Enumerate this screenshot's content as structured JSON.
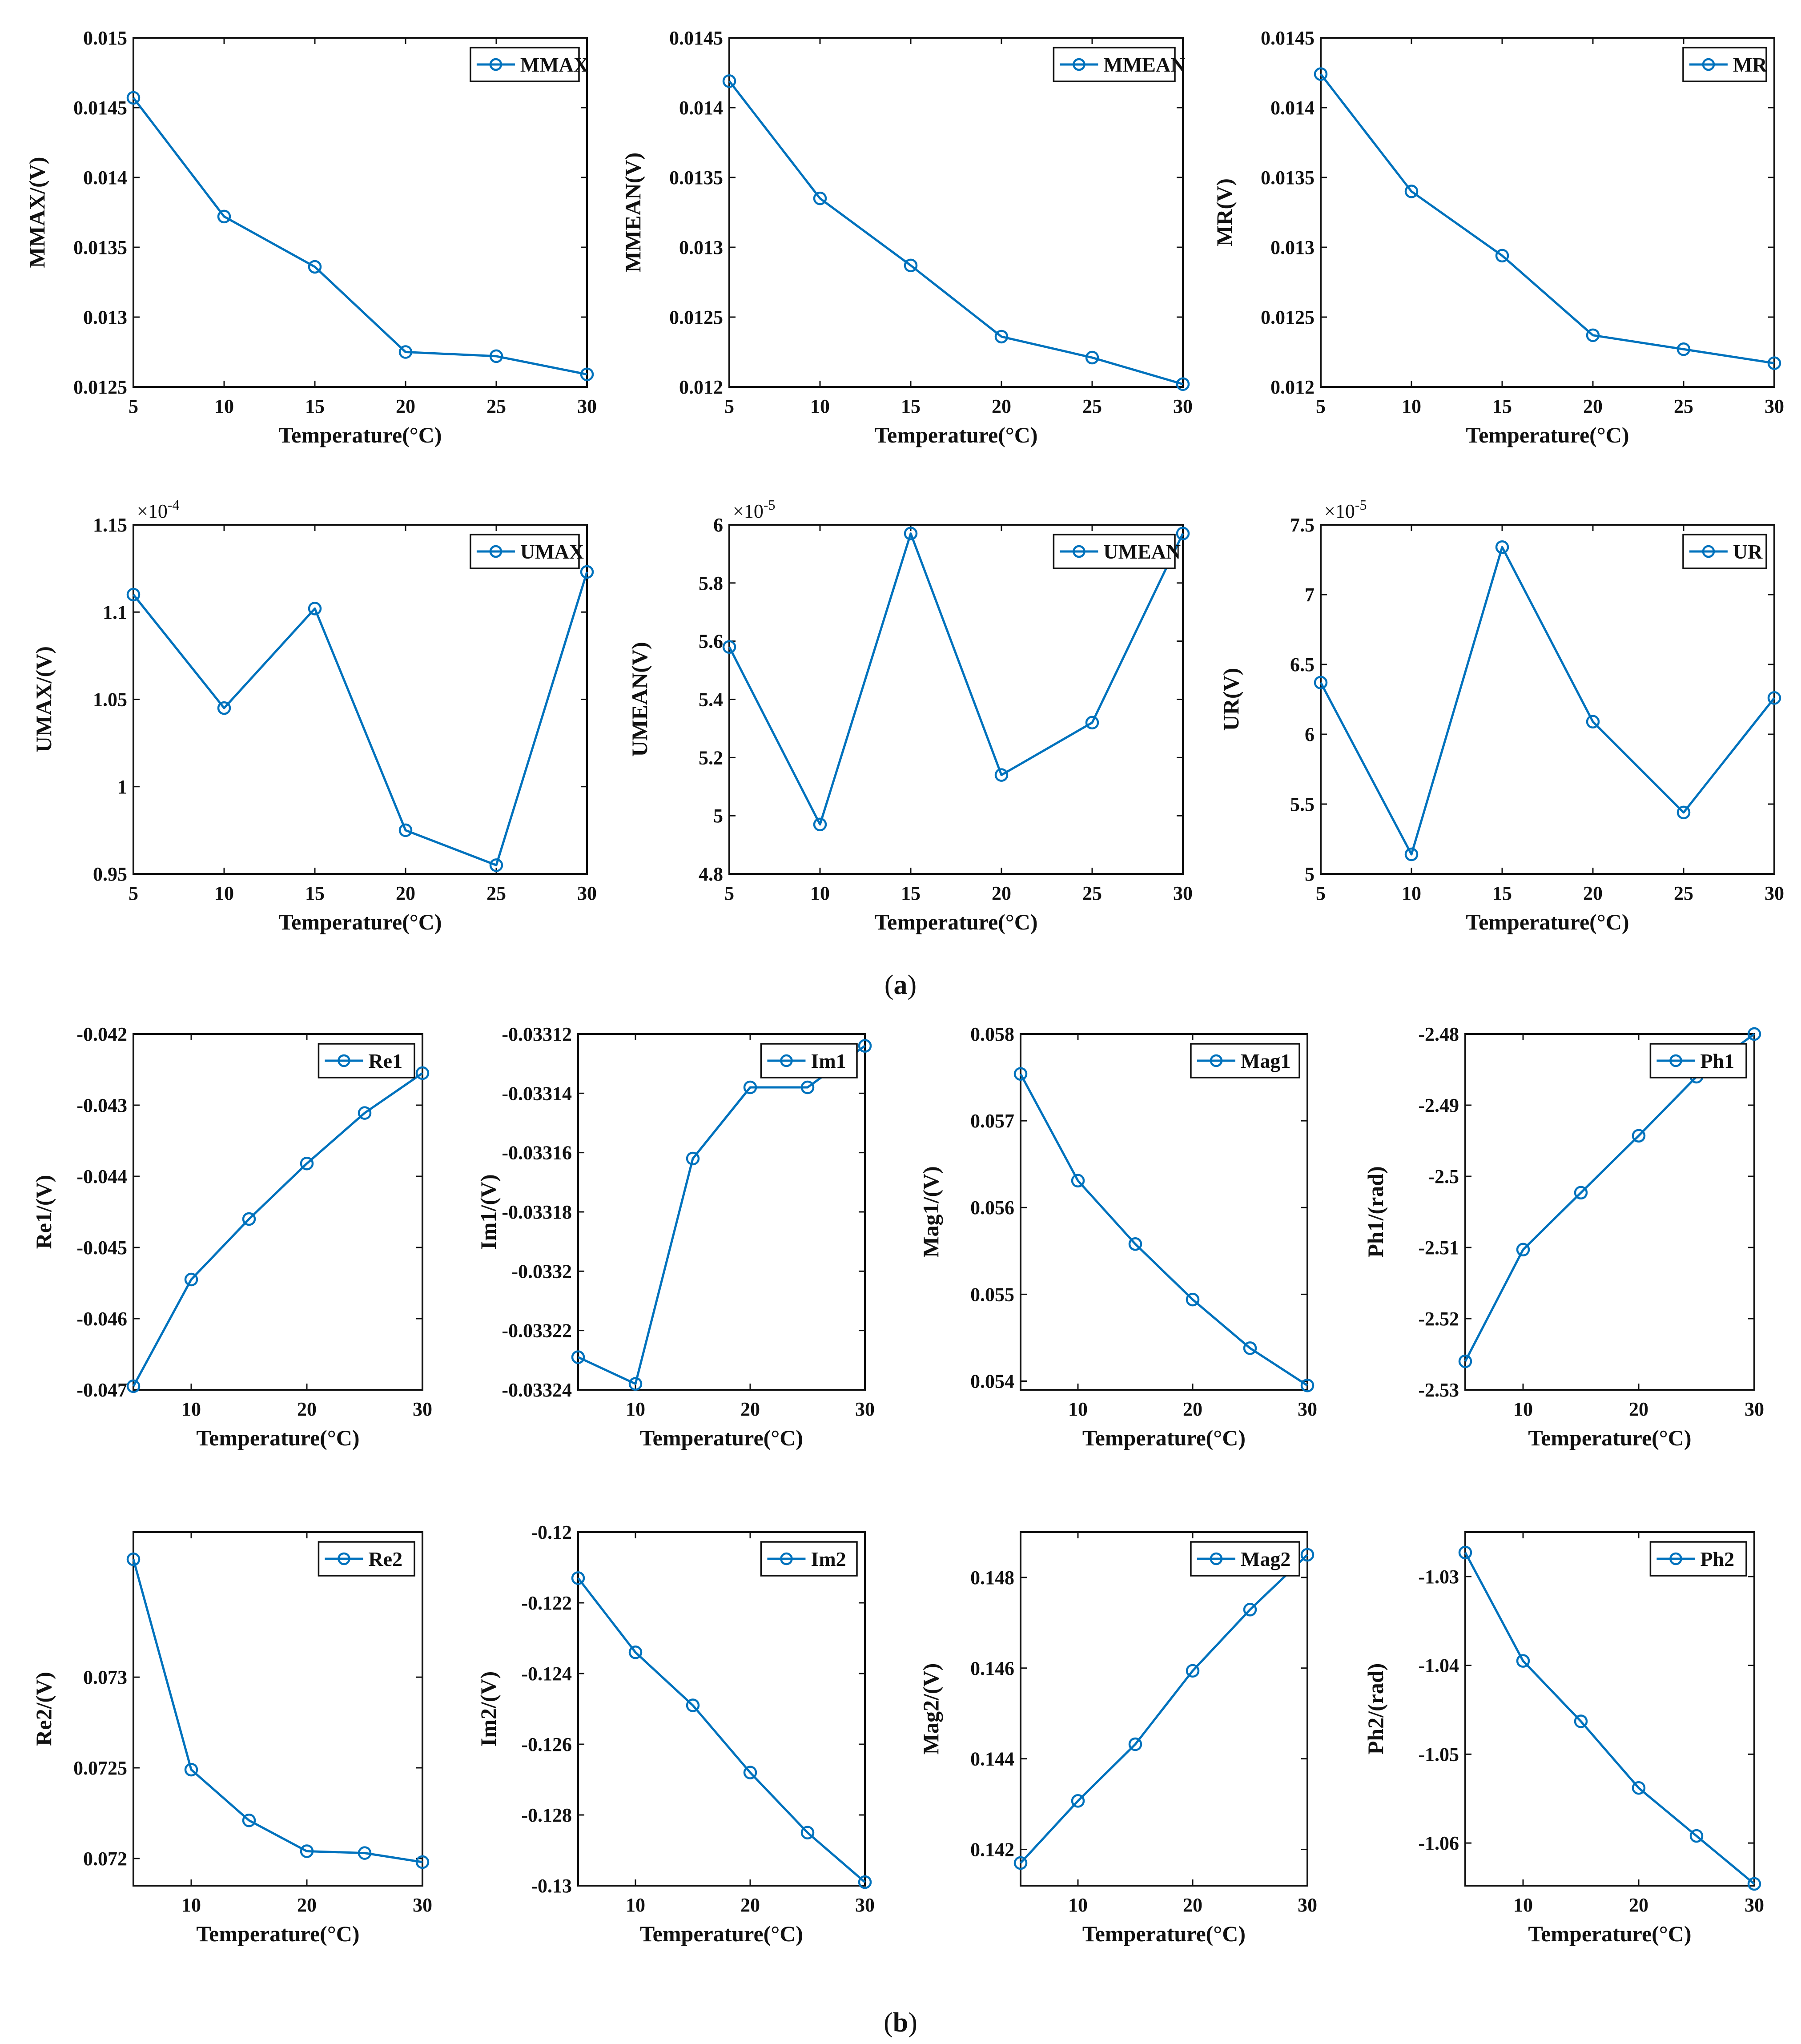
{
  "figure": {
    "series_color": "#0072BD",
    "caption_a": {
      "open": "(",
      "letter": "a",
      "close": ")"
    },
    "caption_b": {
      "open": "(",
      "letter": "b",
      "close": ")"
    }
  },
  "chart_data": [
    {
      "id": "mmax",
      "group": "a",
      "type": "line",
      "xlabel": "Temperature(°C)",
      "ylabel": "MMAX/(V)",
      "legend": "MMAX",
      "legend_position": "top-right",
      "x": [
        5,
        10,
        15,
        20,
        25,
        30
      ],
      "y": [
        0.01457,
        0.01372,
        0.01336,
        0.01275,
        0.01272,
        0.01259
      ],
      "xlim": [
        5,
        30
      ],
      "ylim": [
        0.0125,
        0.015
      ],
      "xticks": [
        5,
        10,
        15,
        20,
        25,
        30
      ],
      "xtick_labels": [
        "5",
        "10",
        "15",
        "20",
        "25",
        "30"
      ],
      "yticks": [
        0.0125,
        0.013,
        0.0135,
        0.014,
        0.0145,
        0.015
      ],
      "ytick_labels": [
        "0.0125",
        "0.013",
        "0.0135",
        "0.014",
        "0.0145",
        "0.015"
      ],
      "exponent": null
    },
    {
      "id": "mmean",
      "group": "a",
      "type": "line",
      "xlabel": "Temperature(°C)",
      "ylabel": "MMEAN(V)",
      "legend": "MMEAN",
      "legend_position": "top-right",
      "x": [
        5,
        10,
        15,
        20,
        25,
        30
      ],
      "y": [
        0.01419,
        0.01335,
        0.01287,
        0.01236,
        0.01221,
        0.01202
      ],
      "xlim": [
        5,
        30
      ],
      "ylim": [
        0.012,
        0.0145
      ],
      "xticks": [
        5,
        10,
        15,
        20,
        25,
        30
      ],
      "xtick_labels": [
        "5",
        "10",
        "15",
        "20",
        "25",
        "30"
      ],
      "yticks": [
        0.012,
        0.0125,
        0.013,
        0.0135,
        0.014,
        0.0145
      ],
      "ytick_labels": [
        "0.012",
        "0.0125",
        "0.013",
        "0.0135",
        "0.014",
        "0.0145"
      ],
      "exponent": null
    },
    {
      "id": "mr",
      "group": "a",
      "type": "line",
      "xlabel": "Temperature(°C)",
      "ylabel": "MR(V)",
      "legend": "MR",
      "legend_position": "top-right",
      "x": [
        5,
        10,
        15,
        20,
        25,
        30
      ],
      "y": [
        0.01424,
        0.0134,
        0.01294,
        0.01237,
        0.01227,
        0.01217
      ],
      "xlim": [
        5,
        30
      ],
      "ylim": [
        0.012,
        0.0145
      ],
      "xticks": [
        5,
        10,
        15,
        20,
        25,
        30
      ],
      "xtick_labels": [
        "5",
        "10",
        "15",
        "20",
        "25",
        "30"
      ],
      "yticks": [
        0.012,
        0.0125,
        0.013,
        0.0135,
        0.014,
        0.0145
      ],
      "ytick_labels": [
        "0.012",
        "0.0125",
        "0.013",
        "0.0135",
        "0.014",
        "0.0145"
      ],
      "exponent": null
    },
    {
      "id": "umax",
      "group": "a",
      "type": "line",
      "xlabel": "Temperature(°C)",
      "ylabel": "UMAX/(V)",
      "legend": "UMAX",
      "legend_position": "top-right",
      "x": [
        5,
        10,
        15,
        20,
        25,
        30
      ],
      "y": [
        1.11,
        1.045,
        1.102,
        0.975,
        0.955,
        1.123
      ],
      "xlim": [
        5,
        30
      ],
      "ylim": [
        0.95,
        1.15
      ],
      "xticks": [
        5,
        10,
        15,
        20,
        25,
        30
      ],
      "xtick_labels": [
        "5",
        "10",
        "15",
        "20",
        "25",
        "30"
      ],
      "yticks": [
        0.95,
        1.0,
        1.05,
        1.1,
        1.15
      ],
      "ytick_labels": [
        "0.95",
        "1",
        "1.05",
        "1.1",
        "1.15"
      ],
      "exponent": {
        "base": "×10",
        "power": "-4"
      }
    },
    {
      "id": "umean",
      "group": "a",
      "type": "line",
      "xlabel": "Temperature(°C)",
      "ylabel": "UMEAN(V)",
      "legend": "UMEAN",
      "legend_position": "top-right",
      "x": [
        5,
        10,
        15,
        20,
        25,
        30
      ],
      "y": [
        5.58,
        4.97,
        5.97,
        5.14,
        5.32,
        5.97
      ],
      "xlim": [
        5,
        30
      ],
      "ylim": [
        4.8,
        6.0
      ],
      "xticks": [
        5,
        10,
        15,
        20,
        25,
        30
      ],
      "xtick_labels": [
        "5",
        "10",
        "15",
        "20",
        "25",
        "30"
      ],
      "yticks": [
        4.8,
        5.0,
        5.2,
        5.4,
        5.6,
        5.8,
        6.0
      ],
      "ytick_labels": [
        "4.8",
        "5",
        "5.2",
        "5.4",
        "5.6",
        "5.8",
        "6"
      ],
      "exponent": {
        "base": "×10",
        "power": "-5"
      }
    },
    {
      "id": "ur",
      "group": "a",
      "type": "line",
      "xlabel": "Temperature(°C)",
      "ylabel": "UR(V)",
      "legend": "UR",
      "legend_position": "top-right",
      "x": [
        5,
        10,
        15,
        20,
        25,
        30
      ],
      "y": [
        6.37,
        5.14,
        7.34,
        6.09,
        5.44,
        6.26
      ],
      "xlim": [
        5,
        30
      ],
      "ylim": [
        5.0,
        7.5
      ],
      "xticks": [
        5,
        10,
        15,
        20,
        25,
        30
      ],
      "xtick_labels": [
        "5",
        "10",
        "15",
        "20",
        "25",
        "30"
      ],
      "yticks": [
        5.0,
        5.5,
        6.0,
        6.5,
        7.0,
        7.5
      ],
      "ytick_labels": [
        "5",
        "5.5",
        "6",
        "6.5",
        "7",
        "7.5"
      ],
      "exponent": {
        "base": "×10",
        "power": "-5"
      }
    },
    {
      "id": "re1",
      "group": "b",
      "type": "line",
      "xlabel": "Temperature(°C)",
      "ylabel": "Re1/(V)",
      "legend": "Re1",
      "legend_position": "top-right",
      "x": [
        5,
        10,
        15,
        20,
        25,
        30
      ],
      "y": [
        -0.04695,
        -0.04545,
        -0.0446,
        -0.04382,
        -0.04311,
        -0.04255
      ],
      "xlim": [
        5,
        30
      ],
      "ylim": [
        -0.047,
        -0.042
      ],
      "xticks": [
        10,
        20,
        30
      ],
      "xtick_labels": [
        "10",
        "20",
        "30"
      ],
      "yticks": [
        -0.047,
        -0.046,
        -0.045,
        -0.044,
        -0.043,
        -0.042
      ],
      "ytick_labels": [
        "-0.047",
        "-0.046",
        "-0.045",
        "-0.044",
        "-0.043",
        "-0.042"
      ],
      "exponent": null
    },
    {
      "id": "im1",
      "group": "b",
      "type": "line",
      "xlabel": "Temperature(°C)",
      "ylabel": "Im1/(V)",
      "legend": "Im1",
      "legend_position": "top-right",
      "x": [
        5,
        10,
        15,
        20,
        25,
        30
      ],
      "y": [
        -0.033229,
        -0.033238,
        -0.033162,
        -0.033138,
        -0.033138,
        -0.033124
      ],
      "xlim": [
        5,
        30
      ],
      "ylim": [
        -0.03324,
        -0.03312
      ],
      "xticks": [
        10,
        20,
        30
      ],
      "xtick_labels": [
        "10",
        "20",
        "30"
      ],
      "yticks": [
        -0.03324,
        -0.03322,
        -0.0332,
        -0.03318,
        -0.03316,
        -0.03314,
        -0.03312
      ],
      "ytick_labels": [
        "-0.03324",
        "-0.03322",
        "-0.0332",
        "-0.03318",
        "-0.03316",
        "-0.03314",
        "-0.03312"
      ],
      "exponent": null
    },
    {
      "id": "mag1",
      "group": "b",
      "type": "line",
      "xlabel": "Temperature(°C)",
      "ylabel": "Mag1/(V)",
      "legend": "Mag1",
      "legend_position": "top-right",
      "x": [
        5,
        10,
        15,
        20,
        25,
        30
      ],
      "y": [
        0.05754,
        0.05631,
        0.05558,
        0.05494,
        0.05438,
        0.05395
      ],
      "xlim": [
        5,
        30
      ],
      "ylim": [
        0.0539,
        0.058
      ],
      "xticks": [
        10,
        20,
        30
      ],
      "xtick_labels": [
        "10",
        "20",
        "30"
      ],
      "yticks": [
        0.054,
        0.055,
        0.056,
        0.057,
        0.058
      ],
      "ytick_labels": [
        "0.054",
        "0.055",
        "0.056",
        "0.057",
        "0.058"
      ],
      "exponent": null
    },
    {
      "id": "ph1",
      "group": "b",
      "type": "line",
      "xlabel": "Temperature(°C)",
      "ylabel": "Ph1/(rad)",
      "legend": "Ph1",
      "legend_position": "top-right",
      "x": [
        5,
        10,
        15,
        20,
        25,
        30
      ],
      "y": [
        -2.526,
        -2.5103,
        -2.5023,
        -2.4943,
        -2.486,
        -2.48
      ],
      "xlim": [
        5,
        30
      ],
      "ylim": [
        -2.53,
        -2.48
      ],
      "xticks": [
        10,
        20,
        30
      ],
      "xtick_labels": [
        "10",
        "20",
        "30"
      ],
      "yticks": [
        -2.53,
        -2.52,
        -2.51,
        -2.5,
        -2.49,
        -2.48
      ],
      "ytick_labels": [
        "-2.53",
        "-2.52",
        "-2.51",
        "-2.5",
        "-2.49",
        "-2.48"
      ],
      "exponent": null
    },
    {
      "id": "re2",
      "group": "b",
      "type": "line",
      "xlabel": "Temperature(°C)",
      "ylabel": "Re2/(V)",
      "legend": "Re2",
      "legend_position": "top-right",
      "x": [
        5,
        10,
        15,
        20,
        25,
        30
      ],
      "y": [
        0.07365,
        0.07249,
        0.07221,
        0.07204,
        0.07203,
        0.07198
      ],
      "xlim": [
        5,
        30
      ],
      "ylim": [
        0.07185,
        0.0738
      ],
      "xticks": [
        10,
        20,
        30
      ],
      "xtick_labels": [
        "10",
        "20",
        "30"
      ],
      "yticks": [
        0.072,
        0.0725,
        0.073
      ],
      "ytick_labels": [
        "0.072",
        "0.0725",
        "0.073"
      ],
      "exponent": null
    },
    {
      "id": "im2",
      "group": "b",
      "type": "line",
      "xlabel": "Temperature(°C)",
      "ylabel": "Im2/(V)",
      "legend": "Im2",
      "legend_position": "top-right",
      "x": [
        5,
        10,
        15,
        20,
        25,
        30
      ],
      "y": [
        -0.1213,
        -0.1234,
        -0.1249,
        -0.1268,
        -0.1285,
        -0.1299
      ],
      "xlim": [
        5,
        30
      ],
      "ylim": [
        -0.13,
        -0.12
      ],
      "xticks": [
        10,
        20,
        30
      ],
      "xtick_labels": [
        "10",
        "20",
        "30"
      ],
      "yticks": [
        -0.13,
        -0.128,
        -0.126,
        -0.124,
        -0.122,
        -0.12
      ],
      "ytick_labels": [
        "-0.13",
        "-0.128",
        "-0.126",
        "-0.124",
        "-0.122",
        "-0.12"
      ],
      "exponent": null
    },
    {
      "id": "mag2",
      "group": "b",
      "type": "line",
      "xlabel": "Temperature(°C)",
      "ylabel": "Mag2/(V)",
      "legend": "Mag2",
      "legend_position": "top-right",
      "x": [
        5,
        10,
        15,
        20,
        25,
        30
      ],
      "y": [
        0.1417,
        0.14307,
        0.14432,
        0.14594,
        0.14729,
        0.1485
      ],
      "xlim": [
        5,
        30
      ],
      "ylim": [
        0.1412,
        0.149
      ],
      "xticks": [
        10,
        20,
        30
      ],
      "xtick_labels": [
        "10",
        "20",
        "30"
      ],
      "yticks": [
        0.142,
        0.144,
        0.146,
        0.148
      ],
      "ytick_labels": [
        "0.142",
        "0.144",
        "0.146",
        "0.148"
      ],
      "exponent": null
    },
    {
      "id": "ph2",
      "group": "b",
      "type": "line",
      "xlabel": "Temperature(°C)",
      "ylabel": "Ph2/(rad)",
      "legend": "Ph2",
      "legend_position": "top-right",
      "x": [
        5,
        10,
        15,
        20,
        25,
        30
      ],
      "y": [
        -1.0273,
        -1.0395,
        -1.0463,
        -1.0538,
        -1.0592,
        -1.0646
      ],
      "xlim": [
        5,
        30
      ],
      "ylim": [
        -1.0648,
        -1.025
      ],
      "xticks": [
        10,
        20,
        30
      ],
      "xtick_labels": [
        "10",
        "20",
        "30"
      ],
      "yticks": [
        -1.06,
        -1.05,
        -1.04,
        -1.03
      ],
      "ytick_labels": [
        "-1.06",
        "-1.05",
        "-1.04",
        "-1.03"
      ],
      "exponent": null
    }
  ]
}
